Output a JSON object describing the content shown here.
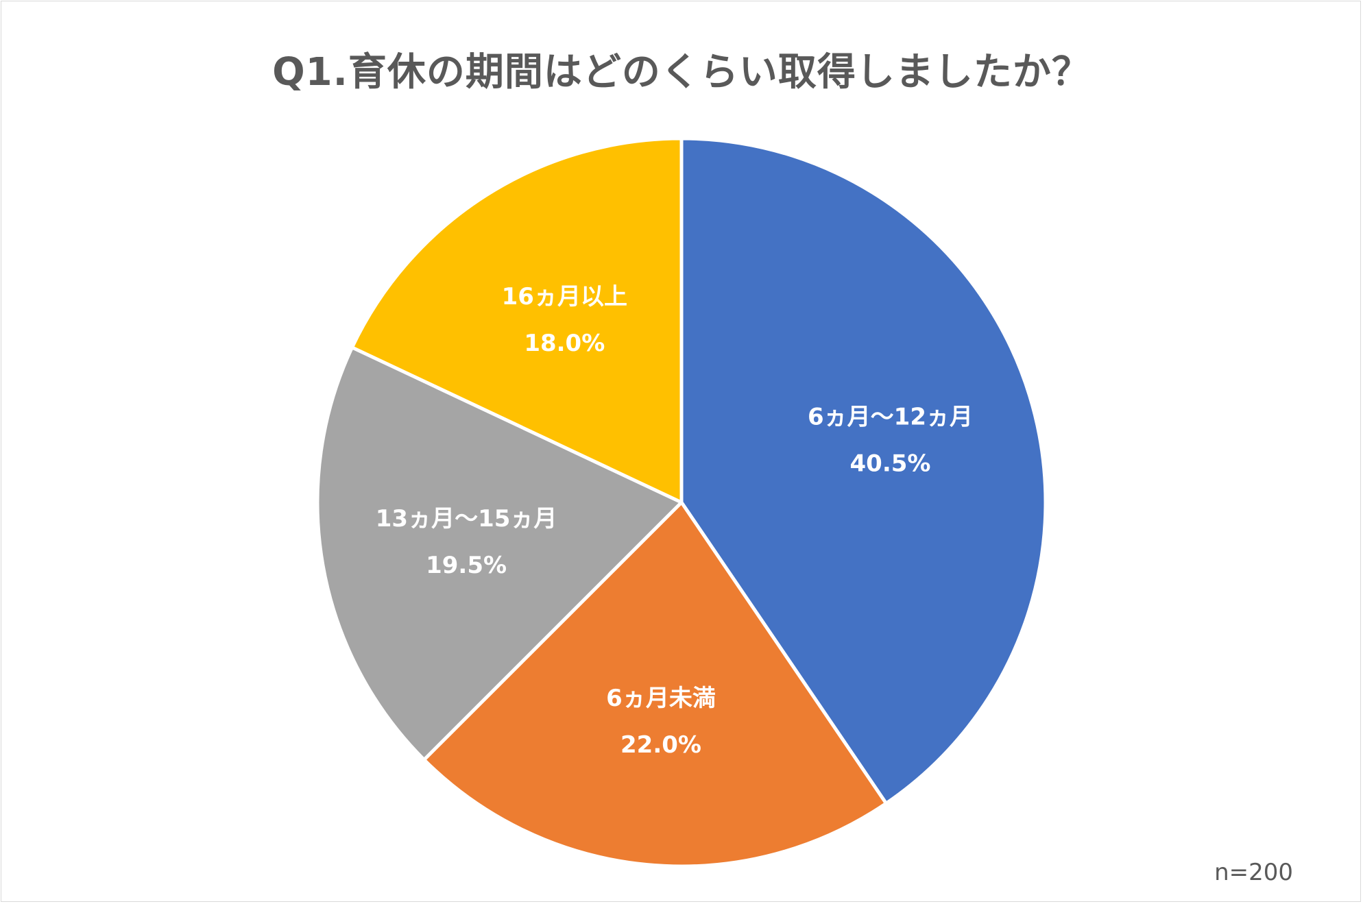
{
  "chart_data": {
    "type": "pie",
    "title": "Q1.育休の期間はどのくらい取得しましたか？",
    "categories": [
      "6ヵ月〜12ヵ月",
      "6ヵ月未満",
      "13ヵ月〜15ヵ月",
      "16ヵ月以上"
    ],
    "values": [
      40.5,
      22.0,
      19.5,
      18.0
    ],
    "value_labels": [
      "40.5%",
      "22.0%",
      "19.5%",
      "18.0%"
    ],
    "colors": [
      "#4472C4",
      "#ED7D31",
      "#A5A5A5",
      "#FFC000"
    ],
    "start": "top",
    "direction": "clockwise",
    "legend": "none",
    "note": "n=200"
  }
}
